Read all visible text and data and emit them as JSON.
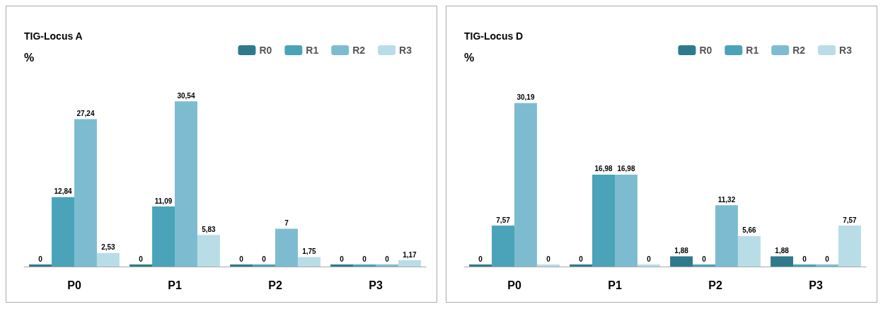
{
  "chart_data": [
    {
      "type": "bar",
      "title": "TIG-Locus A",
      "ylabel": "%",
      "categories": [
        "P0",
        "P1",
        "P2",
        "P3"
      ],
      "legend": "top right",
      "grid": false,
      "series": [
        {
          "name": "R0",
          "color": "#2e7a8c",
          "values": [
            0,
            0,
            0,
            0
          ],
          "value_labels": [
            "0",
            "0",
            "0",
            "0"
          ]
        },
        {
          "name": "R1",
          "color": "#4aa3b8",
          "values": [
            12.84,
            11.09,
            0,
            0
          ],
          "value_labels": [
            "12,84",
            "11,09",
            "0",
            "0"
          ]
        },
        {
          "name": "R2",
          "color": "#7dbcd0",
          "values": [
            27.24,
            30.54,
            7,
            0
          ],
          "value_labels": [
            "27,24",
            "30,54",
            "7",
            "0"
          ]
        },
        {
          "name": "R3",
          "color": "#b9dde6",
          "values": [
            2.53,
            5.83,
            1.75,
            1.17
          ],
          "value_labels": [
            "2,53",
            "5,83",
            "1,75",
            "1,17"
          ]
        }
      ]
    },
    {
      "type": "bar",
      "title": "TIG-Locus D",
      "ylabel": "%",
      "categories": [
        "P0",
        "P1",
        "P2",
        "P3"
      ],
      "legend": "top right",
      "grid": false,
      "series": [
        {
          "name": "R0",
          "color": "#2e7a8c",
          "values": [
            0,
            0,
            1.88,
            1.88
          ],
          "value_labels": [
            "0",
            "0",
            "1,88",
            "1,88"
          ]
        },
        {
          "name": "R1",
          "color": "#4aa3b8",
          "values": [
            7.57,
            16.98,
            0,
            0
          ],
          "value_labels": [
            "7,57",
            "16,98",
            "0",
            "0"
          ]
        },
        {
          "name": "R2",
          "color": "#7dbcd0",
          "values": [
            30.19,
            16.98,
            11.32,
            0
          ],
          "value_labels": [
            "30,19",
            "16,98",
            "11,32",
            "0"
          ]
        },
        {
          "name": "R3",
          "color": "#b9dde6",
          "values": [
            0,
            0,
            5.66,
            7.57
          ],
          "value_labels": [
            "0",
            "0",
            "5,66",
            "7,57"
          ]
        }
      ]
    }
  ]
}
